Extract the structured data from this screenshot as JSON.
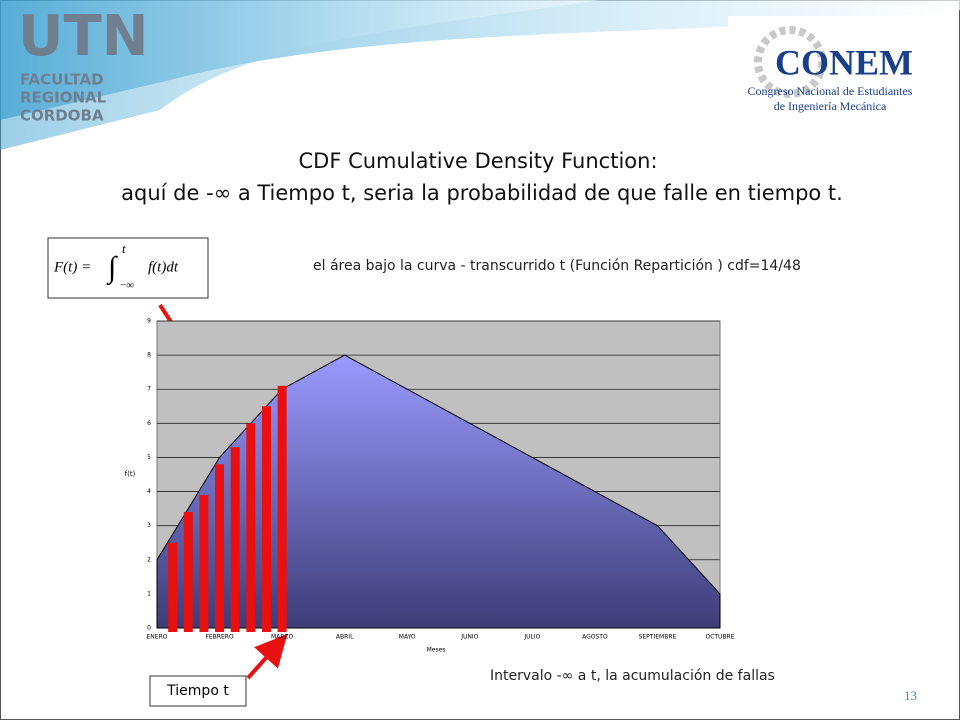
{
  "header": {
    "utn": "UTN",
    "utn_lines": [
      "FACULTAD",
      "REGIONAL",
      "CORDOBA"
    ],
    "conem": "CONEM",
    "conem_lines": [
      "Congreso Nacional de Estudiantes",
      "de Ingeniería Mecánica"
    ]
  },
  "title": [
    "CDF Cumulative Density Function:",
    "aquí de -∞ a Tiempo t, seria la probabilidad de que falle en tiempo t."
  ],
  "formula": {
    "lhs": "F(t) =",
    "integral": "∫",
    "upper": "t",
    "lower": "−∞",
    "integrand": "f(t)dt"
  },
  "annotation": "el área bajo la curva - transcurrido t (Función Repartición )  cdf=14/48",
  "interval_note": "Intervalo  -∞  a t, la acumulación de fallas",
  "time_label": "Tiempo t",
  "page_number": "13",
  "chart_data": {
    "type": "area",
    "categories": [
      "ENERO",
      "FEBRERO",
      "MARZO",
      "ABRIL",
      "MAYO",
      "JUNIO",
      "JULIO",
      "AGOSTO",
      "SEPTIEMBRE",
      "OCTUBRE"
    ],
    "values": [
      2,
      5,
      7,
      8,
      7,
      6,
      5,
      4,
      3,
      1
    ],
    "ylim": [
      0,
      9
    ],
    "yticks": [
      0,
      1,
      2,
      3,
      4,
      5,
      6,
      7,
      8,
      9
    ],
    "y_label": "f(t)",
    "x_label": "Meses",
    "grid": true,
    "color_top": "#9a9aff",
    "color_bottom": "#3d3d78",
    "bars": {
      "x": [
        0.25,
        0.5,
        0.75,
        1.0,
        1.25,
        1.5,
        1.75,
        2.0
      ],
      "values": [
        2.5,
        3.4,
        3.9,
        4.8,
        5.3,
        6.0,
        6.5,
        7.1
      ],
      "color": "#e81010"
    }
  }
}
